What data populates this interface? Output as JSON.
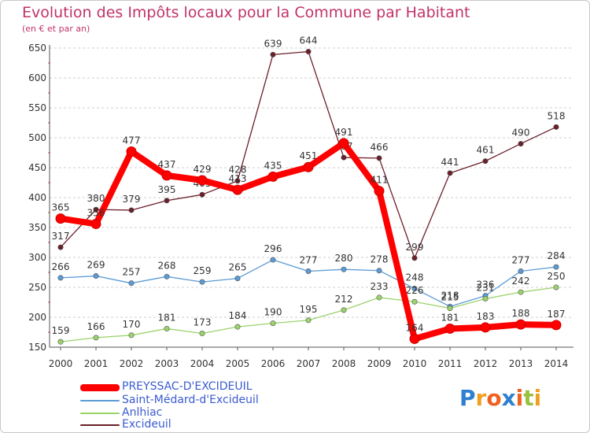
{
  "header": {
    "title": "Evolution des Impôts locaux pour la Commune par Habitant",
    "subtitle": "(en € et par an)"
  },
  "chart_data": {
    "type": "line",
    "title": "Evolution des Impôts locaux pour la Commune par Habitant",
    "subtitle": "(en € et par an)",
    "xlabel": "",
    "ylabel": "",
    "x": [
      "2000",
      "2001",
      "2002",
      "2003",
      "2004",
      "2005",
      "2006",
      "2007",
      "2008",
      "2009",
      "2010",
      "2011",
      "2012",
      "2013",
      "2014"
    ],
    "ylim": [
      150,
      650
    ],
    "yticks": [
      "150",
      "200",
      "250",
      "300",
      "350",
      "400",
      "450",
      "500",
      "550",
      "600",
      "650"
    ],
    "grid": "horizontal dashed",
    "legend_position": "bottom-left",
    "series": [
      {
        "name": "Excideuil",
        "color": "#6b1f2a",
        "values": [
          317,
          380,
          379,
          395,
          405,
          428,
          639,
          644,
          467,
          466,
          299,
          441,
          461,
          490,
          518
        ],
        "labels": [
          "317",
          "380",
          "379",
          "395",
          "405",
          "428",
          "639",
          "644",
          "467",
          "466",
          "299",
          "441",
          "461",
          "490",
          "518"
        ]
      },
      {
        "name": "Saint-Médard-d'Excideuil",
        "color": "#5b9bd5",
        "values": [
          266,
          269,
          257,
          268,
          259,
          265,
          296,
          277,
          280,
          278,
          248,
          218,
          236,
          277,
          284
        ],
        "labels": [
          "266",
          "269",
          "257",
          "268",
          "259",
          "265",
          "296",
          "277",
          "280",
          "278",
          "248",
          "218",
          "236",
          "277",
          "284"
        ]
      },
      {
        "name": "Anlhiac",
        "color": "#9bd36b",
        "values": [
          159,
          166,
          170,
          181,
          173,
          184,
          190,
          195,
          212,
          233,
          226,
          215,
          231,
          242,
          250
        ],
        "labels": [
          "159",
          "166",
          "170",
          "181",
          "173",
          "184",
          "190",
          "195",
          "212",
          "233",
          "226",
          "215",
          "231",
          "242",
          "250"
        ]
      },
      {
        "name": "PREYSSAC-D'EXCIDEUIL",
        "color": "#ff0000",
        "values": [
          365,
          356,
          477,
          437,
          429,
          413,
          435,
          451,
          491,
          411,
          164,
          181,
          183,
          188,
          187
        ],
        "labels": [
          "365",
          "356",
          "477",
          "437",
          "429",
          "413",
          "435",
          "451",
          "491",
          "411",
          "164",
          "181",
          "183",
          "188",
          "187"
        ]
      }
    ],
    "legend": [
      "PREYSSAC-D'EXCIDEUIL",
      "Saint-Médard-d'Excideuil",
      "Anlhiac",
      "Excideuil"
    ]
  },
  "branding": {
    "logo_letters": [
      "P",
      "r",
      "o",
      "x",
      "i",
      "t",
      "i"
    ],
    "logo_colors": [
      "#2f80d0",
      "#f0a020",
      "#f06020",
      "#2f80d0",
      "#f06020",
      "#9ac040",
      "#f0a020"
    ]
  }
}
